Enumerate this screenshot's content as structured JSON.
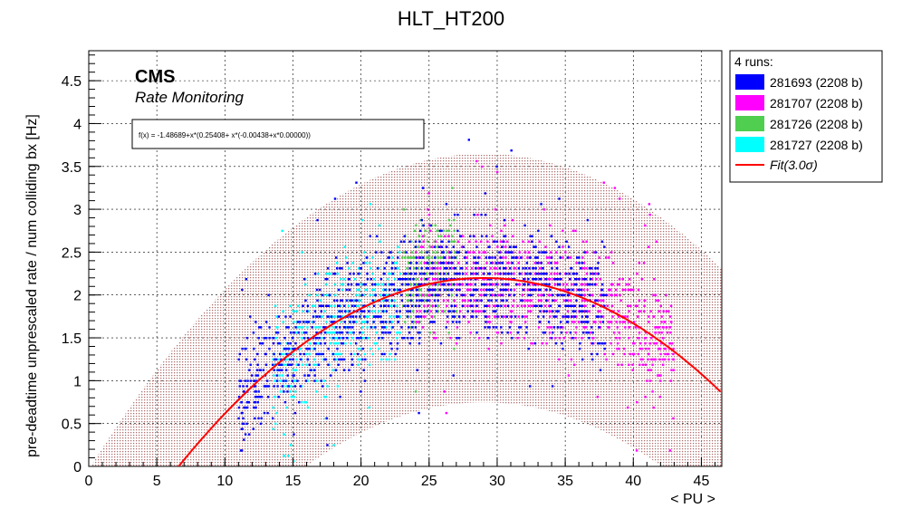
{
  "chart_data": {
    "type": "scatter",
    "title": "HLT_HT200",
    "xlabel": "< PU >",
    "ylabel": "pre-deadtime unprescaled rate / num colliding bx [Hz]",
    "xlim": [
      0,
      46.5
    ],
    "ylim": [
      0,
      4.85
    ],
    "x_ticks": [
      0,
      5,
      10,
      15,
      20,
      25,
      30,
      35,
      40,
      45
    ],
    "y_ticks": [
      0,
      0.5,
      1,
      1.5,
      2,
      2.5,
      3,
      3.5,
      4,
      4.5
    ],
    "grid": true,
    "legend_position": "outside-right",
    "legend_header": "4 runs:",
    "series": [
      {
        "name": "281693 (2208 b)",
        "color": "#0000ff",
        "x_range": [
          11,
          38
        ],
        "y_center_offset": 0.0
      },
      {
        "name": "281707 (2208 b)",
        "color": "#ff00ff",
        "x_range": [
          24,
          43
        ],
        "y_center_offset": 0.0
      },
      {
        "name": "281726 (2208 b)",
        "color": "#4fce4f",
        "x_range": [
          23,
          27
        ],
        "y_center_offset": 0.1
      },
      {
        "name": "281727 (2208 b)",
        "color": "#00ffff",
        "x_range": [
          13.5,
          23
        ],
        "y_center_offset": -0.05
      }
    ],
    "fit": {
      "label": "Fit(3.0σ)",
      "color": "#ff0000",
      "formula": "f(x) = -1.48689+x*(0.25408+ x*(-0.00438+x*0.00000))",
      "p0": -1.48689,
      "p1": 0.25408,
      "p2": -0.00438,
      "band_sigma": 1.45,
      "band_color": "#c08080"
    }
  },
  "annotations": {
    "experiment": "CMS",
    "subtitle": "Rate Monitoring"
  }
}
